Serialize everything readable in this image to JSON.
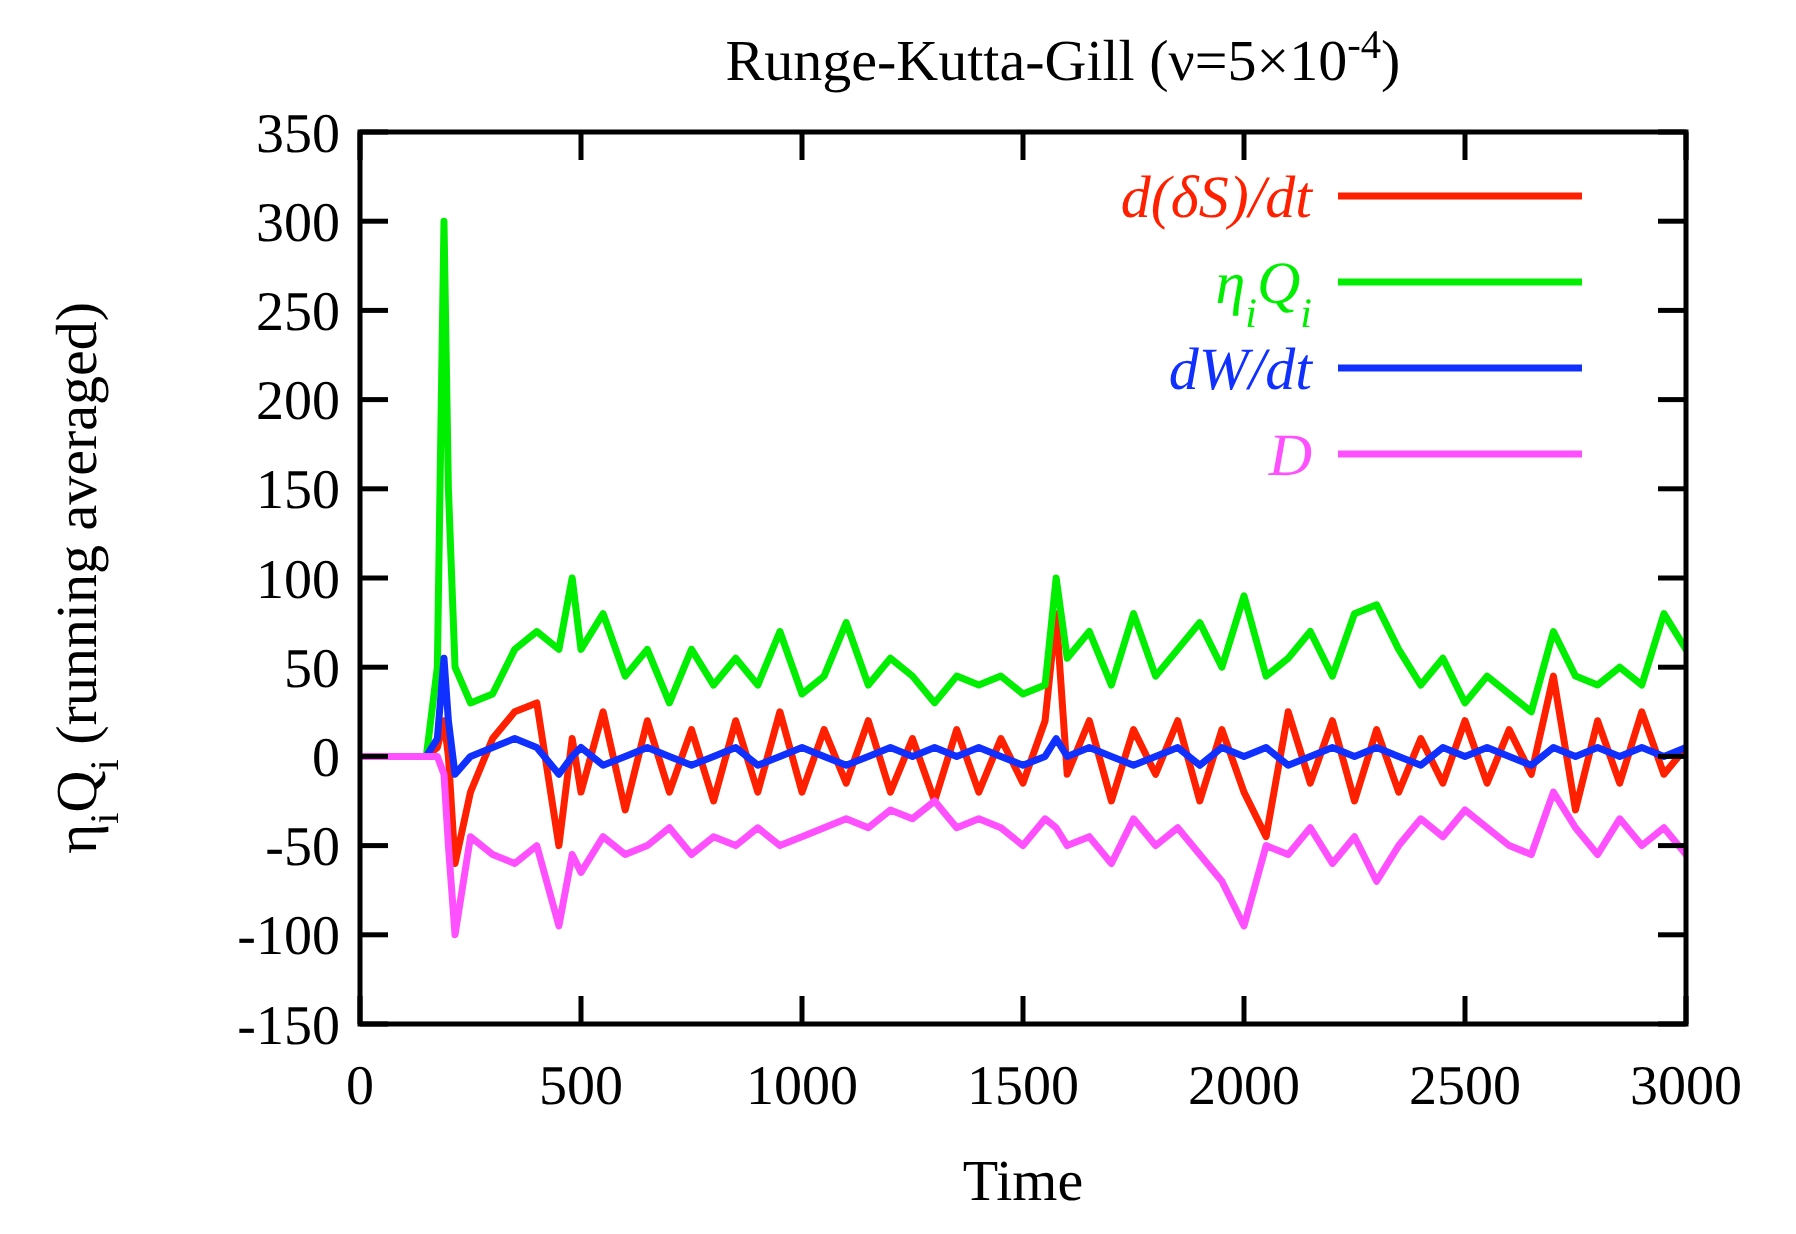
{
  "chart_data": {
    "type": "line",
    "title": "Runge-Kutta-Gill (ν=5×10$^{-4}$)",
    "xlabel": "Time",
    "ylabel": "η$_{i}$Q$_{i}$ (running averaged)",
    "x": [
      0,
      100,
      150,
      175,
      190,
      200,
      215,
      250,
      300,
      350,
      400,
      450,
      480,
      500,
      550,
      600,
      650,
      700,
      750,
      800,
      850,
      900,
      950,
      1000,
      1050,
      1100,
      1150,
      1200,
      1250,
      1300,
      1350,
      1400,
      1450,
      1500,
      1550,
      1575,
      1600,
      1650,
      1700,
      1750,
      1800,
      1850,
      1900,
      1950,
      2000,
      2050,
      2100,
      2150,
      2200,
      2250,
      2300,
      2350,
      2400,
      2450,
      2500,
      2550,
      2600,
      2650,
      2700,
      2750,
      2800,
      2850,
      2900,
      2950,
      3000
    ],
    "series": [
      {
        "name": "d(δS)/dt",
        "color": "#ff2000",
        "values": [
          0,
          0,
          0,
          5,
          20,
          0,
          -60,
          -20,
          10,
          25,
          30,
          -50,
          10,
          -20,
          25,
          -30,
          20,
          -20,
          15,
          -25,
          20,
          -20,
          25,
          -20,
          15,
          -15,
          20,
          -20,
          10,
          -25,
          15,
          -20,
          10,
          -15,
          20,
          80,
          -10,
          20,
          -25,
          15,
          -10,
          20,
          -25,
          15,
          -20,
          -45,
          25,
          -15,
          20,
          -25,
          15,
          -20,
          10,
          -15,
          20,
          -15,
          15,
          -10,
          45,
          -30,
          20,
          -15,
          25,
          -10,
          5
        ]
      },
      {
        "name": "η$_{i}$Q$_{i}$",
        "color": "#00ee00",
        "values": [
          0,
          0,
          0,
          50,
          300,
          150,
          50,
          30,
          35,
          60,
          70,
          60,
          100,
          60,
          80,
          45,
          60,
          30,
          60,
          40,
          55,
          40,
          70,
          35,
          45,
          75,
          40,
          55,
          45,
          30,
          45,
          40,
          45,
          35,
          40,
          100,
          55,
          70,
          40,
          80,
          45,
          60,
          75,
          50,
          90,
          45,
          55,
          70,
          45,
          80,
          85,
          60,
          40,
          55,
          30,
          45,
          35,
          25,
          70,
          45,
          40,
          50,
          40,
          80,
          60
        ]
      },
      {
        "name": "dW/dt",
        "color": "#1030ff",
        "values": [
          0,
          0,
          0,
          10,
          55,
          20,
          -10,
          0,
          5,
          10,
          5,
          -10,
          0,
          5,
          -5,
          0,
          5,
          0,
          -5,
          0,
          5,
          -5,
          0,
          5,
          0,
          -5,
          0,
          5,
          0,
          5,
          0,
          5,
          0,
          -5,
          0,
          10,
          0,
          5,
          0,
          -5,
          0,
          5,
          -5,
          5,
          0,
          5,
          -5,
          0,
          5,
          0,
          5,
          0,
          -5,
          5,
          0,
          5,
          0,
          -5,
          5,
          0,
          5,
          0,
          5,
          0,
          5
        ]
      },
      {
        "name": "D",
        "color": "#ff50ff",
        "values": [
          0,
          0,
          0,
          0,
          -10,
          -50,
          -100,
          -45,
          -55,
          -60,
          -50,
          -95,
          -55,
          -65,
          -45,
          -55,
          -50,
          -40,
          -55,
          -45,
          -50,
          -40,
          -50,
          -45,
          -40,
          -35,
          -40,
          -30,
          -35,
          -25,
          -40,
          -35,
          -40,
          -50,
          -35,
          -40,
          -50,
          -45,
          -60,
          -35,
          -50,
          -40,
          -55,
          -70,
          -95,
          -50,
          -55,
          -40,
          -60,
          -45,
          -70,
          -50,
          -35,
          -45,
          -30,
          -40,
          -50,
          -55,
          -20,
          -40,
          -55,
          -35,
          -50,
          -40,
          -55
        ]
      }
    ],
    "xlim": [
      0,
      3000
    ],
    "xticks": [
      0,
      500,
      1000,
      1500,
      2000,
      2500,
      3000
    ],
    "ylim": [
      -150,
      350
    ],
    "yticks": [
      -150,
      -100,
      -50,
      0,
      50,
      100,
      150,
      200,
      250,
      300,
      350
    ],
    "grid": false,
    "legend": "top right",
    "line_style": "solid",
    "marker": "none"
  }
}
